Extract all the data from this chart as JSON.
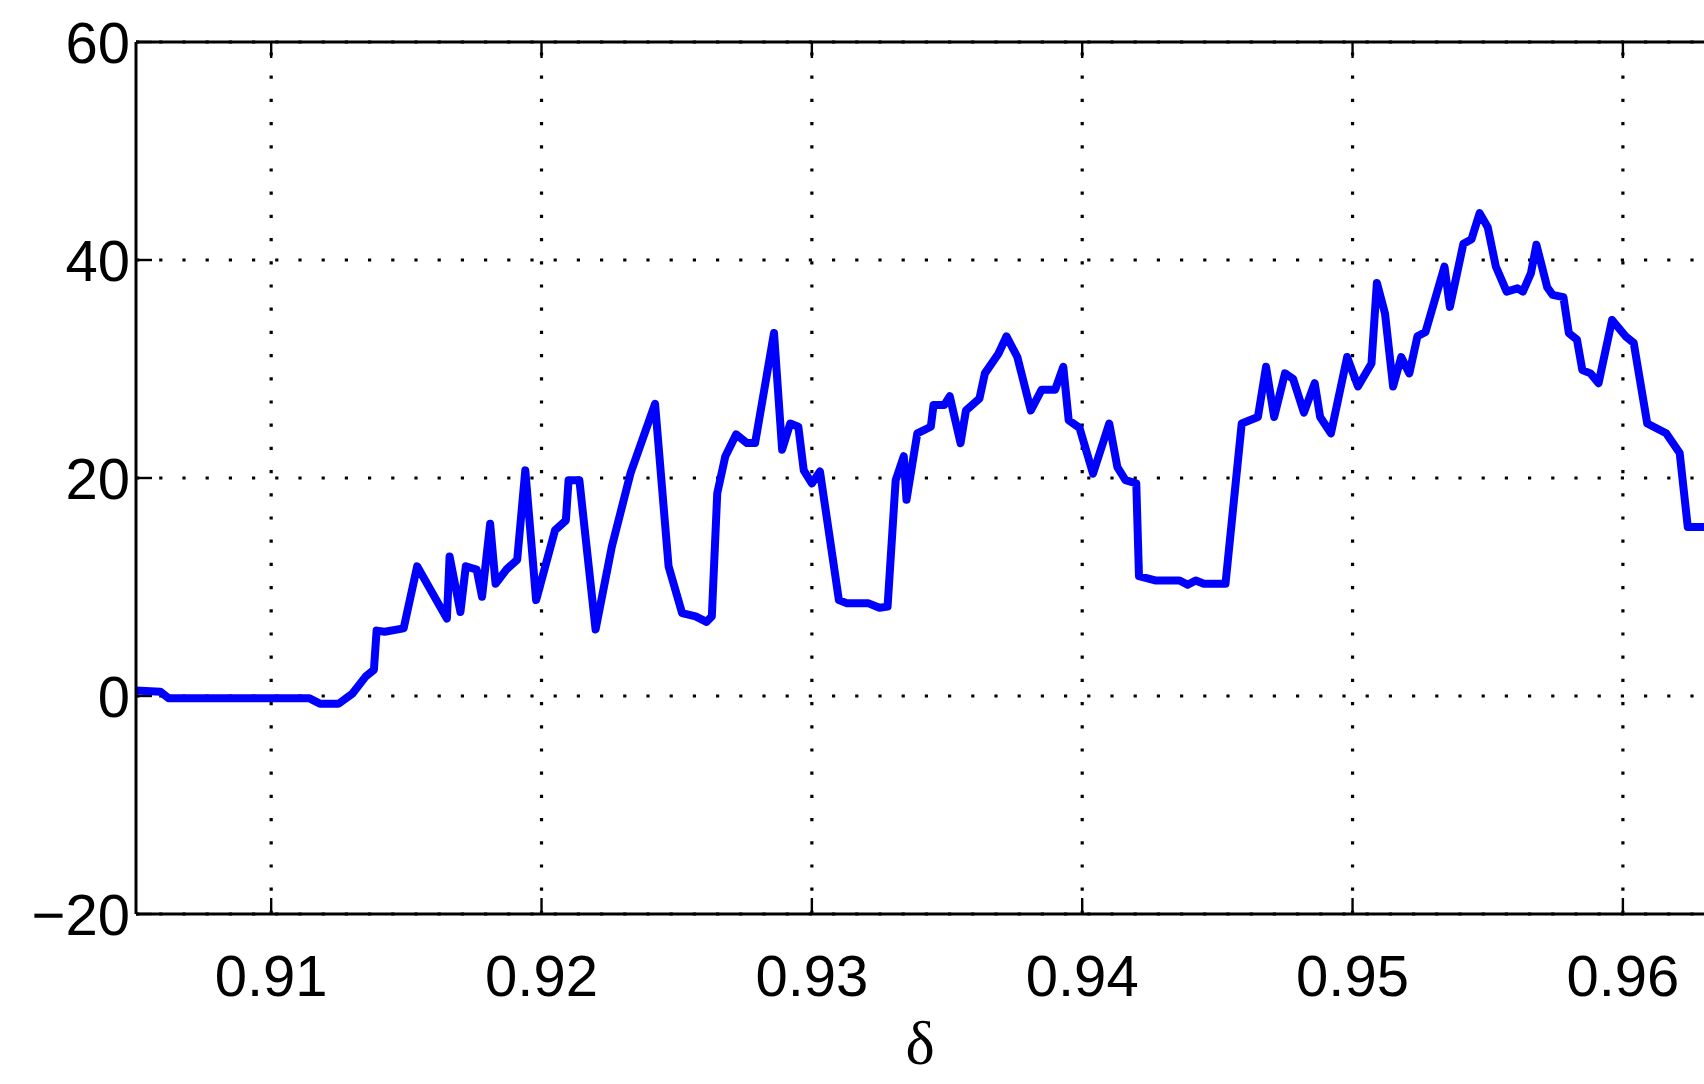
{
  "chart_data": {
    "type": "line",
    "xlabel": "δ",
    "xlim": [
      0.905,
      0.963
    ],
    "ylim": [
      -20,
      60
    ],
    "xticks": [
      0.91,
      0.92,
      0.93,
      0.94,
      0.95,
      0.96
    ],
    "yticks": [
      {
        "value": -20,
        "label": "−20"
      },
      0,
      20,
      40,
      60
    ],
    "grid": true,
    "line_style": "solid",
    "marker": "none",
    "series": [
      {
        "color": "#0000ff",
        "x": [
          0.905,
          0.9059,
          0.9062,
          0.9114,
          0.9118,
          0.9125,
          0.913,
          0.9135,
          0.9138,
          0.9139,
          0.9142,
          0.9149,
          0.9154,
          0.9165,
          0.9166,
          0.917,
          0.9172,
          0.9176,
          0.9178,
          0.9181,
          0.9183,
          0.9187,
          0.9191,
          0.9194,
          0.9198,
          0.9205,
          0.9209,
          0.921,
          0.9214,
          0.922,
          0.9226,
          0.9233,
          0.9242,
          0.9247,
          0.9252,
          0.9257,
          0.9261,
          0.9263,
          0.9265,
          0.9268,
          0.9272,
          0.9276,
          0.9279,
          0.9286,
          0.9289,
          0.9292,
          0.9295,
          0.9297,
          0.93,
          0.9303,
          0.931,
          0.9313,
          0.9321,
          0.9325,
          0.9328,
          0.9331,
          0.9334,
          0.9335,
          0.9339,
          0.9344,
          0.9345,
          0.9349,
          0.9351,
          0.9355,
          0.9357,
          0.9362,
          0.9364,
          0.9369,
          0.9372,
          0.9376,
          0.9381,
          0.9385,
          0.939,
          0.9393,
          0.9395,
          0.9399,
          0.9404,
          0.941,
          0.9413,
          0.9416,
          0.942,
          0.9421,
          0.9427,
          0.9436,
          0.9439,
          0.9442,
          0.9445,
          0.9453,
          0.9459,
          0.9465,
          0.9468,
          0.9471,
          0.9475,
          0.9478,
          0.9482,
          0.9486,
          0.9488,
          0.9492,
          0.9498,
          0.9502,
          0.9507,
          0.9509,
          0.9512,
          0.9515,
          0.9518,
          0.9521,
          0.9524,
          0.9527,
          0.9534,
          0.9536,
          0.9541,
          0.9544,
          0.9547,
          0.955,
          0.9553,
          0.9557,
          0.9561,
          0.9563,
          0.9566,
          0.9568,
          0.9572,
          0.9574,
          0.9578,
          0.958,
          0.9583,
          0.9585,
          0.9588,
          0.9591,
          0.9596,
          0.9601,
          0.9604,
          0.9609,
          0.9616,
          0.9621,
          0.9624,
          0.963
        ],
        "values": [
          0.5,
          0.4,
          -0.2,
          -0.2,
          -0.7,
          -0.7,
          0.2,
          1.8,
          2.4,
          6,
          5.9,
          6.2,
          11.9,
          7.1,
          12.8,
          7.7,
          11.9,
          11.6,
          9.1,
          15.8,
          10.3,
          11.6,
          12.5,
          20.7,
          8.8,
          15.2,
          16.1,
          19.8,
          19.8,
          6.1,
          13.7,
          20.5,
          26.8,
          11.9,
          7.6,
          7.3,
          6.8,
          7.3,
          18.6,
          22,
          24,
          23.2,
          23.2,
          33.3,
          22.6,
          25,
          24.7,
          20.7,
          19.5,
          20.6,
          8.8,
          8.5,
          8.5,
          8.1,
          8.2,
          19.8,
          22,
          18,
          24.1,
          24.7,
          26.7,
          26.7,
          27.5,
          23.2,
          26.2,
          27.3,
          29.6,
          31.4,
          33,
          31.1,
          26.2,
          28.1,
          28.1,
          30.2,
          25.3,
          24.6,
          20.4,
          25,
          21,
          19.8,
          19.5,
          11,
          10.6,
          10.6,
          10.2,
          10.6,
          10.3,
          10.3,
          25,
          25.6,
          30.2,
          25.6,
          29.6,
          29.1,
          26,
          28.7,
          25.6,
          24.1,
          31.1,
          28.4,
          30.5,
          37.9,
          35.1,
          28.4,
          31.1,
          29.6,
          33,
          33.4,
          39.4,
          35.7,
          41.5,
          41.9,
          44.3,
          43,
          39.4,
          37.1,
          37.4,
          37.1,
          38.8,
          41.4,
          37.5,
          36.8,
          36.6,
          33.3,
          32.7,
          29.9,
          29.6,
          28.7,
          34.5,
          33,
          32.4,
          25,
          24.1,
          22.3,
          15.5,
          15.5
        ]
      }
    ]
  }
}
